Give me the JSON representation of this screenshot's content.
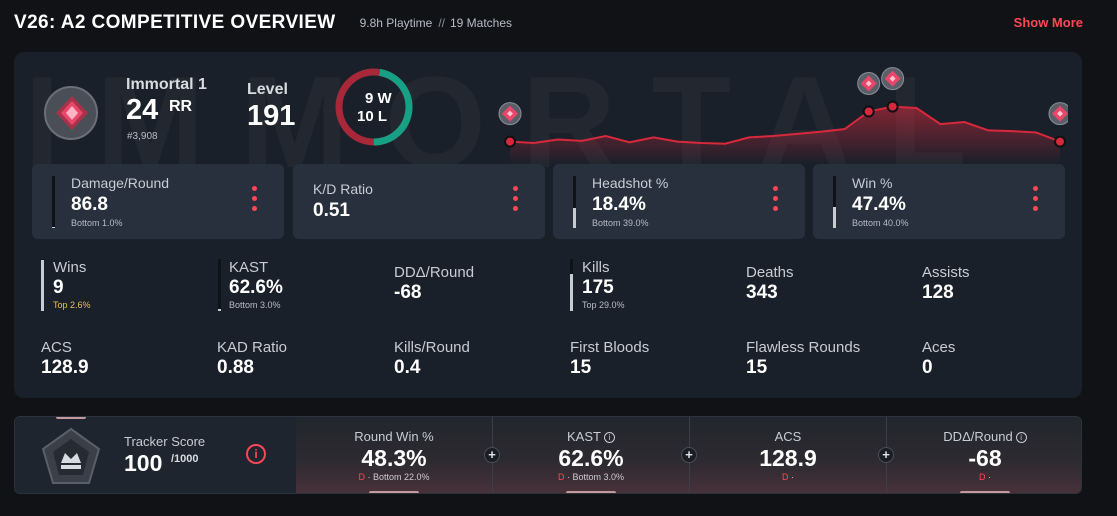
{
  "header": {
    "title": "V26: A2 COMPETITIVE OVERVIEW",
    "playtime": "9.8h Playtime",
    "separator": "//",
    "matches": "19 Matches",
    "show_more": "Show More"
  },
  "rank": {
    "name": "Immortal 1",
    "rr": "24",
    "rr_unit": "RR",
    "position": "#3,908"
  },
  "level": {
    "label": "Level",
    "value": "191"
  },
  "winloss": {
    "wins": "9 W",
    "losses": "10 L",
    "win_fraction": 0.474
  },
  "trend": {
    "values": [
      0.32,
      0.3,
      0.35,
      0.33,
      0.4,
      0.31,
      0.38,
      0.32,
      0.3,
      0.29,
      0.38,
      0.4,
      0.43,
      0.46,
      0.5,
      0.75,
      0.82,
      0.8,
      0.57,
      0.6,
      0.48,
      0.47,
      0.45,
      0.32
    ],
    "markers": [
      0,
      15,
      16,
      23
    ]
  },
  "top_stats": [
    {
      "label": "Damage/Round",
      "value": "86.8",
      "sub": "Bottom 1.0%",
      "fill": 0.01
    },
    {
      "label": "K/D Ratio",
      "value": "0.51"
    },
    {
      "label": "Headshot %",
      "value": "18.4%",
      "sub": "Bottom 39.0%",
      "fill": 0.39
    },
    {
      "label": "Win %",
      "value": "47.4%",
      "sub": "Bottom 40.0%",
      "fill": 0.4
    }
  ],
  "stats": [
    {
      "label": "Wins",
      "value": "9",
      "sub": "Top 2.6%",
      "fill": 0.974
    },
    {
      "label": "KAST",
      "value": "62.6%",
      "sub": "Bottom 3.0%",
      "fill": 0.03
    },
    {
      "label": "DDΔ/Round",
      "value": "-68"
    },
    {
      "label": "Kills",
      "value": "175",
      "sub": "Top 29.0%",
      "fill": 0.71
    },
    {
      "label": "Deaths",
      "value": "343"
    },
    {
      "label": "Assists",
      "value": "128"
    },
    {
      "label": "ACS",
      "value": "128.9"
    },
    {
      "label": "KAD Ratio",
      "value": "0.88"
    },
    {
      "label": "Kills/Round",
      "value": "0.4"
    },
    {
      "label": "First Bloods",
      "value": "15"
    },
    {
      "label": "Flawless Rounds",
      "value": "15"
    },
    {
      "label": "Aces",
      "value": "0"
    }
  ],
  "tracker": {
    "label": "Tracker Score",
    "value": "100",
    "max": "/1000",
    "info": "i"
  },
  "tracker_cells": [
    {
      "label": "Round Win %",
      "value": "48.3%",
      "grade": "D",
      "sub": " · Bottom 22.0%",
      "info": false
    },
    {
      "label": "KAST",
      "value": "62.6%",
      "grade": "D",
      "sub": " · Bottom 3.0%",
      "info": true
    },
    {
      "label": "ACS",
      "value": "128.9",
      "grade": "D",
      "sub": " · ",
      "info": false
    },
    {
      "label": "DDΔ/Round",
      "value": "-68",
      "grade": "D",
      "sub": " · ",
      "info": true
    }
  ],
  "background_word": "IMMORTAL"
}
